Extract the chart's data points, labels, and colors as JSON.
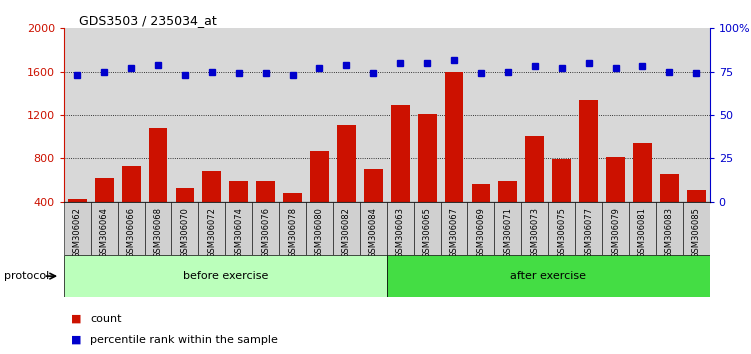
{
  "title": "GDS3503 / 235034_at",
  "samples": [
    "GSM306062",
    "GSM306064",
    "GSM306066",
    "GSM306068",
    "GSM306070",
    "GSM306072",
    "GSM306074",
    "GSM306076",
    "GSM306078",
    "GSM306080",
    "GSM306082",
    "GSM306084",
    "GSM306063",
    "GSM306065",
    "GSM306067",
    "GSM306069",
    "GSM306071",
    "GSM306073",
    "GSM306075",
    "GSM306077",
    "GSM306079",
    "GSM306081",
    "GSM306083",
    "GSM306085"
  ],
  "counts": [
    430,
    620,
    730,
    1080,
    530,
    680,
    590,
    590,
    480,
    870,
    1110,
    700,
    1290,
    1210,
    1600,
    560,
    590,
    1010,
    790,
    1340,
    810,
    940,
    660,
    510
  ],
  "percentile": [
    73,
    75,
    77,
    79,
    73,
    75,
    74,
    74,
    73,
    77,
    79,
    74,
    80,
    80,
    82,
    74,
    75,
    78,
    77,
    80,
    77,
    78,
    75,
    74
  ],
  "before_exercise_count": 12,
  "bar_color": "#cc1100",
  "dot_color": "#0000cc",
  "before_color": "#bbffbb",
  "after_color": "#44dd44",
  "ylim_left": [
    400,
    2000
  ],
  "ylim_right": [
    0,
    100
  ],
  "yticks_left": [
    400,
    800,
    1200,
    1600,
    2000
  ],
  "yticks_right": [
    0,
    25,
    50,
    75,
    100
  ],
  "grid_values": [
    800,
    1200,
    1600
  ],
  "protocol_label": "protocol",
  "before_label": "before exercise",
  "after_label": "after exercise",
  "legend_count_label": "count",
  "legend_pct_label": "percentile rank within the sample"
}
